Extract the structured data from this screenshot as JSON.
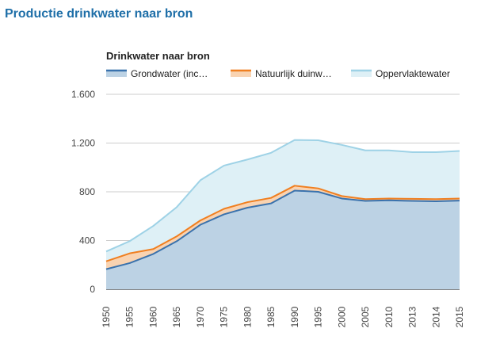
{
  "page": {
    "title": "Productie drinkwater naar bron"
  },
  "chart_data": {
    "type": "area",
    "title": "Drinkwater naar bron",
    "xlabel": "",
    "ylabel": "",
    "stacked": true,
    "legend_position": "top",
    "grid": true,
    "ylim": [
      0,
      1600
    ],
    "yticks": [
      0,
      400,
      800,
      1200,
      1600
    ],
    "ytick_labels": [
      "0",
      "400",
      "800",
      "1.200",
      "1.600"
    ],
    "categories": [
      "1950",
      "1955",
      "1960",
      "1965",
      "1970",
      "1975",
      "1980",
      "1985",
      "1990",
      "1995",
      "2000",
      "2005",
      "2010",
      "2013",
      "2014",
      "2015"
    ],
    "series": [
      {
        "name": "Grondwater (inc…",
        "color": "#3a72ad",
        "fill": "#bcd2e4",
        "values": [
          165,
          215,
          290,
          395,
          530,
          615,
          670,
          705,
          810,
          800,
          745,
          725,
          730,
          725,
          722,
          728
        ]
      },
      {
        "name": "Natuurlijk duinw…",
        "color": "#f07f20",
        "fill": "#f9d3b1",
        "values": [
          65,
          80,
          40,
          40,
          35,
          45,
          45,
          45,
          40,
          28,
          20,
          15,
          15,
          17,
          18,
          17
        ]
      },
      {
        "name": "Oppervlaktewater",
        "color": "#9ed2e6",
        "fill": "#def0f6",
        "values": [
          80,
          100,
          190,
          240,
          330,
          355,
          350,
          370,
          375,
          395,
          420,
          400,
          395,
          383,
          385,
          390
        ]
      }
    ]
  }
}
